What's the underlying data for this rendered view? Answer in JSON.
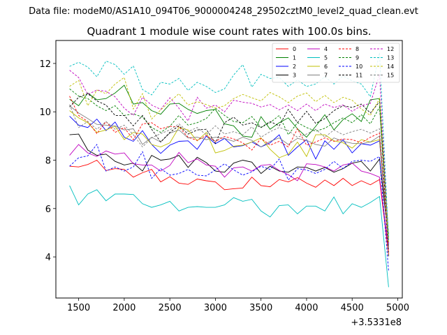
{
  "chart_data": {
    "type": "line",
    "suptitle": "Data file: modeM0/AS1A10_094T06_9000004248_29502cztM0_level2_quad_clean.evt",
    "title": "Quadrant 1 module wise count rates with 100.0s bins.",
    "xlabel": "",
    "ylabel": "",
    "x_offset_label": "+3.5331e8",
    "xlim": [
      1250,
      5050
    ],
    "ylim": [
      2.3,
      12.95
    ],
    "xticks": [
      1500,
      2000,
      2500,
      3000,
      3500,
      4000,
      4500,
      5000
    ],
    "yticks": [
      4,
      6,
      8,
      10,
      12
    ],
    "x": [
      1400,
      1500,
      1600,
      1700,
      1800,
      1900,
      2000,
      2100,
      2200,
      2300,
      2400,
      2500,
      2600,
      2700,
      2800,
      2900,
      3000,
      3100,
      3200,
      3300,
      3400,
      3500,
      3600,
      3700,
      3800,
      3900,
      4000,
      4100,
      4200,
      4300,
      4400,
      4500,
      4600,
      4700,
      4800,
      4900
    ],
    "legend_location": "upper right",
    "series": [
      {
        "name": "0",
        "color": "#ff0000",
        "dash": "solid",
        "values": [
          7.75,
          7.72,
          7.82,
          8.0,
          7.57,
          7.65,
          7.62,
          7.3,
          7.48,
          7.62,
          7.1,
          7.32,
          7.05,
          7.0,
          7.22,
          7.15,
          7.1,
          6.78,
          6.82,
          6.85,
          7.3,
          6.95,
          6.9,
          7.2,
          7.1,
          7.28,
          7.05,
          6.88,
          7.18,
          6.95,
          7.25,
          6.95,
          7.15,
          6.98,
          7.2,
          4.1
        ]
      },
      {
        "name": "1",
        "color": "#008000",
        "dash": "solid",
        "values": [
          10.52,
          10.25,
          10.78,
          10.5,
          10.55,
          10.78,
          11.1,
          10.32,
          10.38,
          10.05,
          9.9,
          10.32,
          10.35,
          10.1,
          9.93,
          10.05,
          10.1,
          9.5,
          9.42,
          9.0,
          8.95,
          9.8,
          9.28,
          9.55,
          9.75,
          9.3,
          8.95,
          9.4,
          9.88,
          9.25,
          9.68,
          9.92,
          9.6,
          10.5,
          10.55,
          4.8
        ]
      },
      {
        "name": "2",
        "color": "#0000ff",
        "dash": "solid",
        "values": [
          9.82,
          9.45,
          9.35,
          9.7,
          9.22,
          9.58,
          8.95,
          8.78,
          9.22,
          8.65,
          8.28,
          8.62,
          8.78,
          8.8,
          8.45,
          9.0,
          8.68,
          8.9,
          8.55,
          8.6,
          8.75,
          8.55,
          8.72,
          9.05,
          8.2,
          8.55,
          8.85,
          8.05,
          8.8,
          8.45,
          8.85,
          8.3,
          8.68,
          8.62,
          8.8,
          4.5
        ]
      },
      {
        "name": "3",
        "color": "#000000",
        "dash": "solid",
        "values": [
          9.05,
          9.08,
          8.42,
          8.2,
          8.25,
          7.95,
          7.8,
          7.88,
          7.55,
          8.2,
          8.0,
          8.05,
          8.2,
          7.7,
          8.12,
          7.9,
          7.55,
          7.5,
          7.88,
          8.0,
          7.92,
          7.45,
          7.75,
          7.55,
          7.5,
          7.72,
          7.7,
          7.55,
          7.7,
          7.5,
          7.65,
          7.88,
          7.95,
          7.55,
          8.05,
          4.7
        ]
      },
      {
        "name": "4",
        "color": "#bf00bf",
        "dash": "solid",
        "values": [
          8.2,
          8.65,
          8.3,
          8.15,
          8.38,
          8.25,
          8.3,
          7.85,
          7.8,
          7.8,
          7.55,
          7.78,
          8.32,
          7.9,
          8.05,
          7.8,
          7.75,
          7.3,
          7.68,
          7.72,
          7.55,
          7.78,
          7.82,
          7.58,
          7.4,
          7.15,
          7.85,
          7.82,
          7.72,
          7.55,
          7.8,
          7.88,
          7.55,
          7.45,
          7.3,
          4.3
        ]
      },
      {
        "name": "5",
        "color": "#00bfbf",
        "dash": "solid",
        "values": [
          6.95,
          6.15,
          6.6,
          6.78,
          6.32,
          6.6,
          6.6,
          6.58,
          6.2,
          6.05,
          6.15,
          6.3,
          5.9,
          6.05,
          6.08,
          6.05,
          6.05,
          6.15,
          6.45,
          6.3,
          6.38,
          5.9,
          5.65,
          6.12,
          6.15,
          5.78,
          6.1,
          6.1,
          5.9,
          6.48,
          5.78,
          6.2,
          6.05,
          6.25,
          6.5,
          2.75
        ]
      },
      {
        "name": "6",
        "color": "#bfbf00",
        "dash": "solid",
        "values": [
          10.05,
          9.75,
          9.55,
          9.15,
          9.25,
          9.4,
          8.85,
          9.15,
          9.08,
          8.65,
          8.55,
          8.72,
          9.35,
          9.25,
          8.8,
          9.15,
          8.3,
          8.4,
          8.58,
          8.62,
          8.75,
          8.92,
          8.45,
          8.1,
          8.25,
          8.75,
          8.15,
          9.05,
          9.05,
          8.8,
          8.72,
          8.5,
          8.85,
          8.75,
          8.85,
          4.6
        ]
      },
      {
        "name": "7",
        "color": "#808080",
        "dash": "solid",
        "values": [
          10.25,
          9.95,
          9.72,
          9.48,
          9.45,
          9.42,
          9.25,
          9.3,
          8.65,
          8.95,
          8.75,
          9.12,
          9.25,
          8.92,
          8.95,
          8.85,
          8.95,
          8.9,
          8.78,
          8.95,
          8.82,
          8.55,
          8.78,
          8.92,
          8.65,
          8.9,
          8.82,
          8.65,
          8.58,
          8.92,
          8.78,
          8.7,
          8.68,
          8.75,
          9.0,
          4.4
        ]
      },
      {
        "name": "8",
        "color": "#ff0000",
        "dash": "dashed",
        "values": [
          10.65,
          9.85,
          9.6,
          9.1,
          9.6,
          9.15,
          9.35,
          8.85,
          9.5,
          9.55,
          9.3,
          9.4,
          9.38,
          8.95,
          8.82,
          9.02,
          8.78,
          8.98,
          8.88,
          8.72,
          8.42,
          8.9,
          8.62,
          8.78,
          8.55,
          9.3,
          8.62,
          8.75,
          8.92,
          8.78,
          8.88,
          8.85,
          8.72,
          8.95,
          9.12,
          4.2
        ]
      },
      {
        "name": "9",
        "color": "#008000",
        "dash": "dashed",
        "values": [
          10.95,
          10.65,
          10.55,
          10.25,
          10.05,
          10.25,
          9.85,
          9.92,
          9.78,
          9.35,
          9.15,
          9.4,
          9.85,
          9.45,
          9.55,
          9.72,
          10.15,
          9.85,
          9.6,
          9.55,
          9.8,
          9.35,
          9.55,
          9.85,
          9.05,
          9.55,
          9.35,
          9.2,
          9.32,
          9.55,
          9.75,
          9.55,
          9.88,
          9.5,
          10.2,
          4.9
        ]
      },
      {
        "name": "10",
        "color": "#0000ff",
        "dash": "dashed",
        "values": [
          7.75,
          8.1,
          8.18,
          8.65,
          7.55,
          7.72,
          7.55,
          7.72,
          8.35,
          7.25,
          7.65,
          7.38,
          7.45,
          7.62,
          7.38,
          7.35,
          7.6,
          7.85,
          7.6,
          7.38,
          7.52,
          7.75,
          7.62,
          8.05,
          7.18,
          7.65,
          7.6,
          7.45,
          7.62,
          7.95,
          7.65,
          7.95,
          8.0,
          7.95,
          8.15,
          3.4
        ]
      },
      {
        "name": "11",
        "color": "#000000",
        "dash": "dashed",
        "values": [
          10.2,
          10.6,
          10.75,
          10.45,
          10.28,
          9.85,
          9.85,
          9.42,
          9.85,
          9.28,
          8.75,
          9.15,
          9.42,
          9.08,
          9.25,
          9.28,
          8.7,
          9.55,
          9.78,
          9.45,
          9.55,
          9.35,
          9.6,
          9.42,
          10.1,
          9.55,
          10.02,
          9.52,
          9.72,
          10.05,
          10.25,
          10.18,
          10.32,
          9.95,
          10.42,
          4.0
        ]
      },
      {
        "name": "12",
        "color": "#bf00bf",
        "dash": "dashed",
        "values": [
          11.72,
          11.42,
          10.72,
          10.9,
          10.85,
          10.62,
          10.15,
          9.85,
          10.6,
          10.28,
          10.1,
          10.58,
          10.15,
          9.62,
          10.6,
          10.15,
          10.28,
          10.0,
          10.48,
          10.4,
          10.35,
          10.2,
          10.3,
          10.08,
          10.28,
          10.05,
          10.32,
          10.05,
          10.32,
          10.18,
          10.28,
          10.02,
          10.25,
          10.35,
          11.55,
          4.5
        ]
      },
      {
        "name": "13",
        "color": "#00bfbf",
        "dash": "dashed",
        "values": [
          11.88,
          12.05,
          11.85,
          11.45,
          12.1,
          11.95,
          11.55,
          11.9,
          10.92,
          10.7,
          11.22,
          11.15,
          11.38,
          10.88,
          11.22,
          11.05,
          10.8,
          10.95,
          11.52,
          11.95,
          11.02,
          11.55,
          11.38,
          11.42,
          11.05,
          11.32,
          11.05,
          11.15,
          11.45,
          11.15,
          11.48,
          11.28,
          11.15,
          10.62,
          12.45,
          4.7
        ]
      },
      {
        "name": "14",
        "color": "#bfbf00",
        "dash": "dashed",
        "values": [
          11.05,
          11.3,
          10.25,
          10.9,
          10.75,
          11.15,
          11.42,
          10.12,
          10.75,
          9.7,
          10.08,
          10.42,
          10.75,
          10.28,
          10.42,
          10.3,
          10.15,
          10.25,
          10.55,
          10.72,
          10.58,
          10.45,
          10.8,
          10.62,
          10.38,
          10.65,
          10.78,
          10.42,
          10.68,
          10.38,
          10.6,
          10.48,
          10.12,
          9.85,
          10.55,
          4.6
        ]
      },
      {
        "name": "15",
        "color": "#808080",
        "dash": "dashed",
        "values": [
          10.3,
          9.35,
          9.6,
          9.28,
          9.6,
          9.28,
          9.45,
          9.05,
          8.55,
          8.92,
          9.1,
          9.25,
          9.5,
          9.18,
          9.35,
          9.05,
          9.42,
          9.08,
          9.18,
          9.05,
          9.38,
          8.95,
          9.18,
          9.35,
          9.22,
          8.95,
          9.08,
          9.28,
          8.95,
          9.25,
          9.05,
          9.18,
          9.28,
          9.12,
          9.3,
          4.3
        ]
      }
    ]
  }
}
